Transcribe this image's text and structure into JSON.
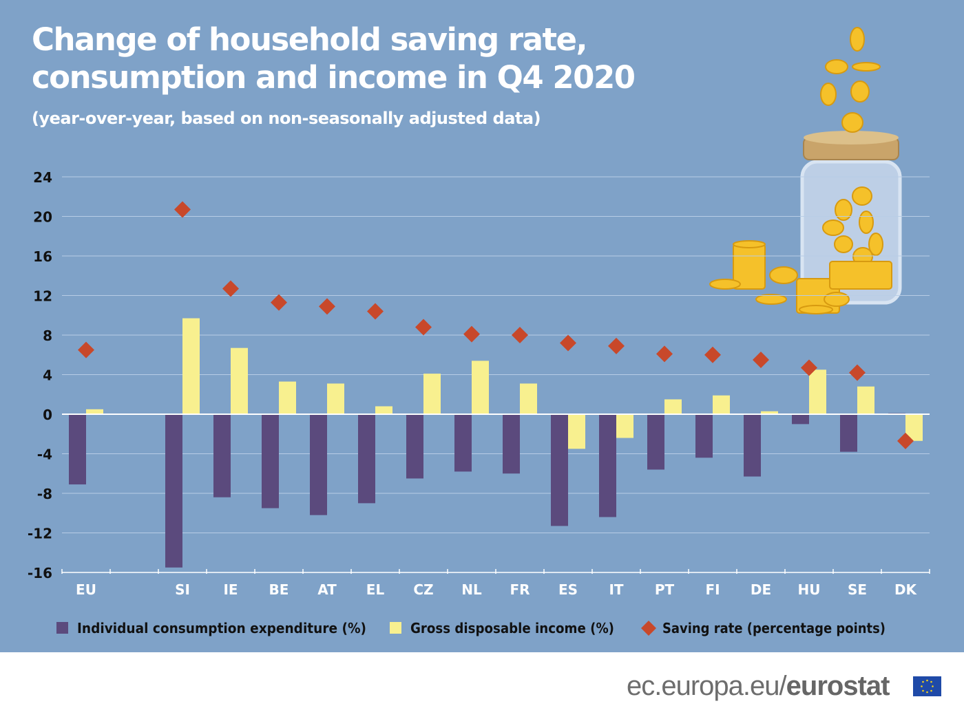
{
  "title": "Change of household saving rate, consumption and income in Q4 2020",
  "subtitle": "(year-over-year, based on non-seasonally adjusted data)",
  "footer": {
    "site": "ec.europa.eu/",
    "brand": "eurostat"
  },
  "colors": {
    "background": "#7fa2c8",
    "consumption": "#5b4a7d",
    "income": "#f8f08f",
    "saving": "#c8482a",
    "grid": "#b8cde6"
  },
  "chart_data": {
    "type": "bar",
    "title": "Change of household saving rate, consumption and income in Q4 2020",
    "categories": [
      "EU",
      "",
      "SI",
      "IE",
      "BE",
      "AT",
      "EL",
      "CZ",
      "NL",
      "FR",
      "ES",
      "IT",
      "PT",
      "FI",
      "DE",
      "HU",
      "SE",
      "DK"
    ],
    "ylim": [
      -16,
      24
    ],
    "yticks": [
      24,
      20,
      16,
      12,
      8,
      4,
      0,
      -4,
      -8,
      -12,
      -16
    ],
    "grid": true,
    "legend_position": "bottom",
    "series": [
      {
        "name": "Individual consumption expenditure (%)",
        "type": "bar",
        "values": [
          -7.1,
          null,
          -15.5,
          -8.4,
          -9.5,
          -10.2,
          -9.0,
          -6.5,
          -5.8,
          -6.0,
          -11.3,
          -10.4,
          -5.6,
          -4.4,
          -6.3,
          -1.0,
          -3.8,
          0.1
        ]
      },
      {
        "name": "Gross disposable income (%)",
        "type": "bar",
        "values": [
          0.5,
          null,
          9.7,
          6.7,
          3.3,
          3.1,
          0.8,
          4.1,
          5.4,
          3.1,
          -3.5,
          -2.4,
          1.5,
          1.9,
          0.3,
          4.5,
          2.8,
          -2.7
        ]
      },
      {
        "name": "Saving rate (percentage points)",
        "type": "scatter",
        "marker": "diamond",
        "values": [
          6.5,
          null,
          20.7,
          12.7,
          11.3,
          10.9,
          10.4,
          8.8,
          8.1,
          8.0,
          7.2,
          6.9,
          6.1,
          6.0,
          5.5,
          4.7,
          4.2,
          -2.7
        ]
      }
    ]
  }
}
